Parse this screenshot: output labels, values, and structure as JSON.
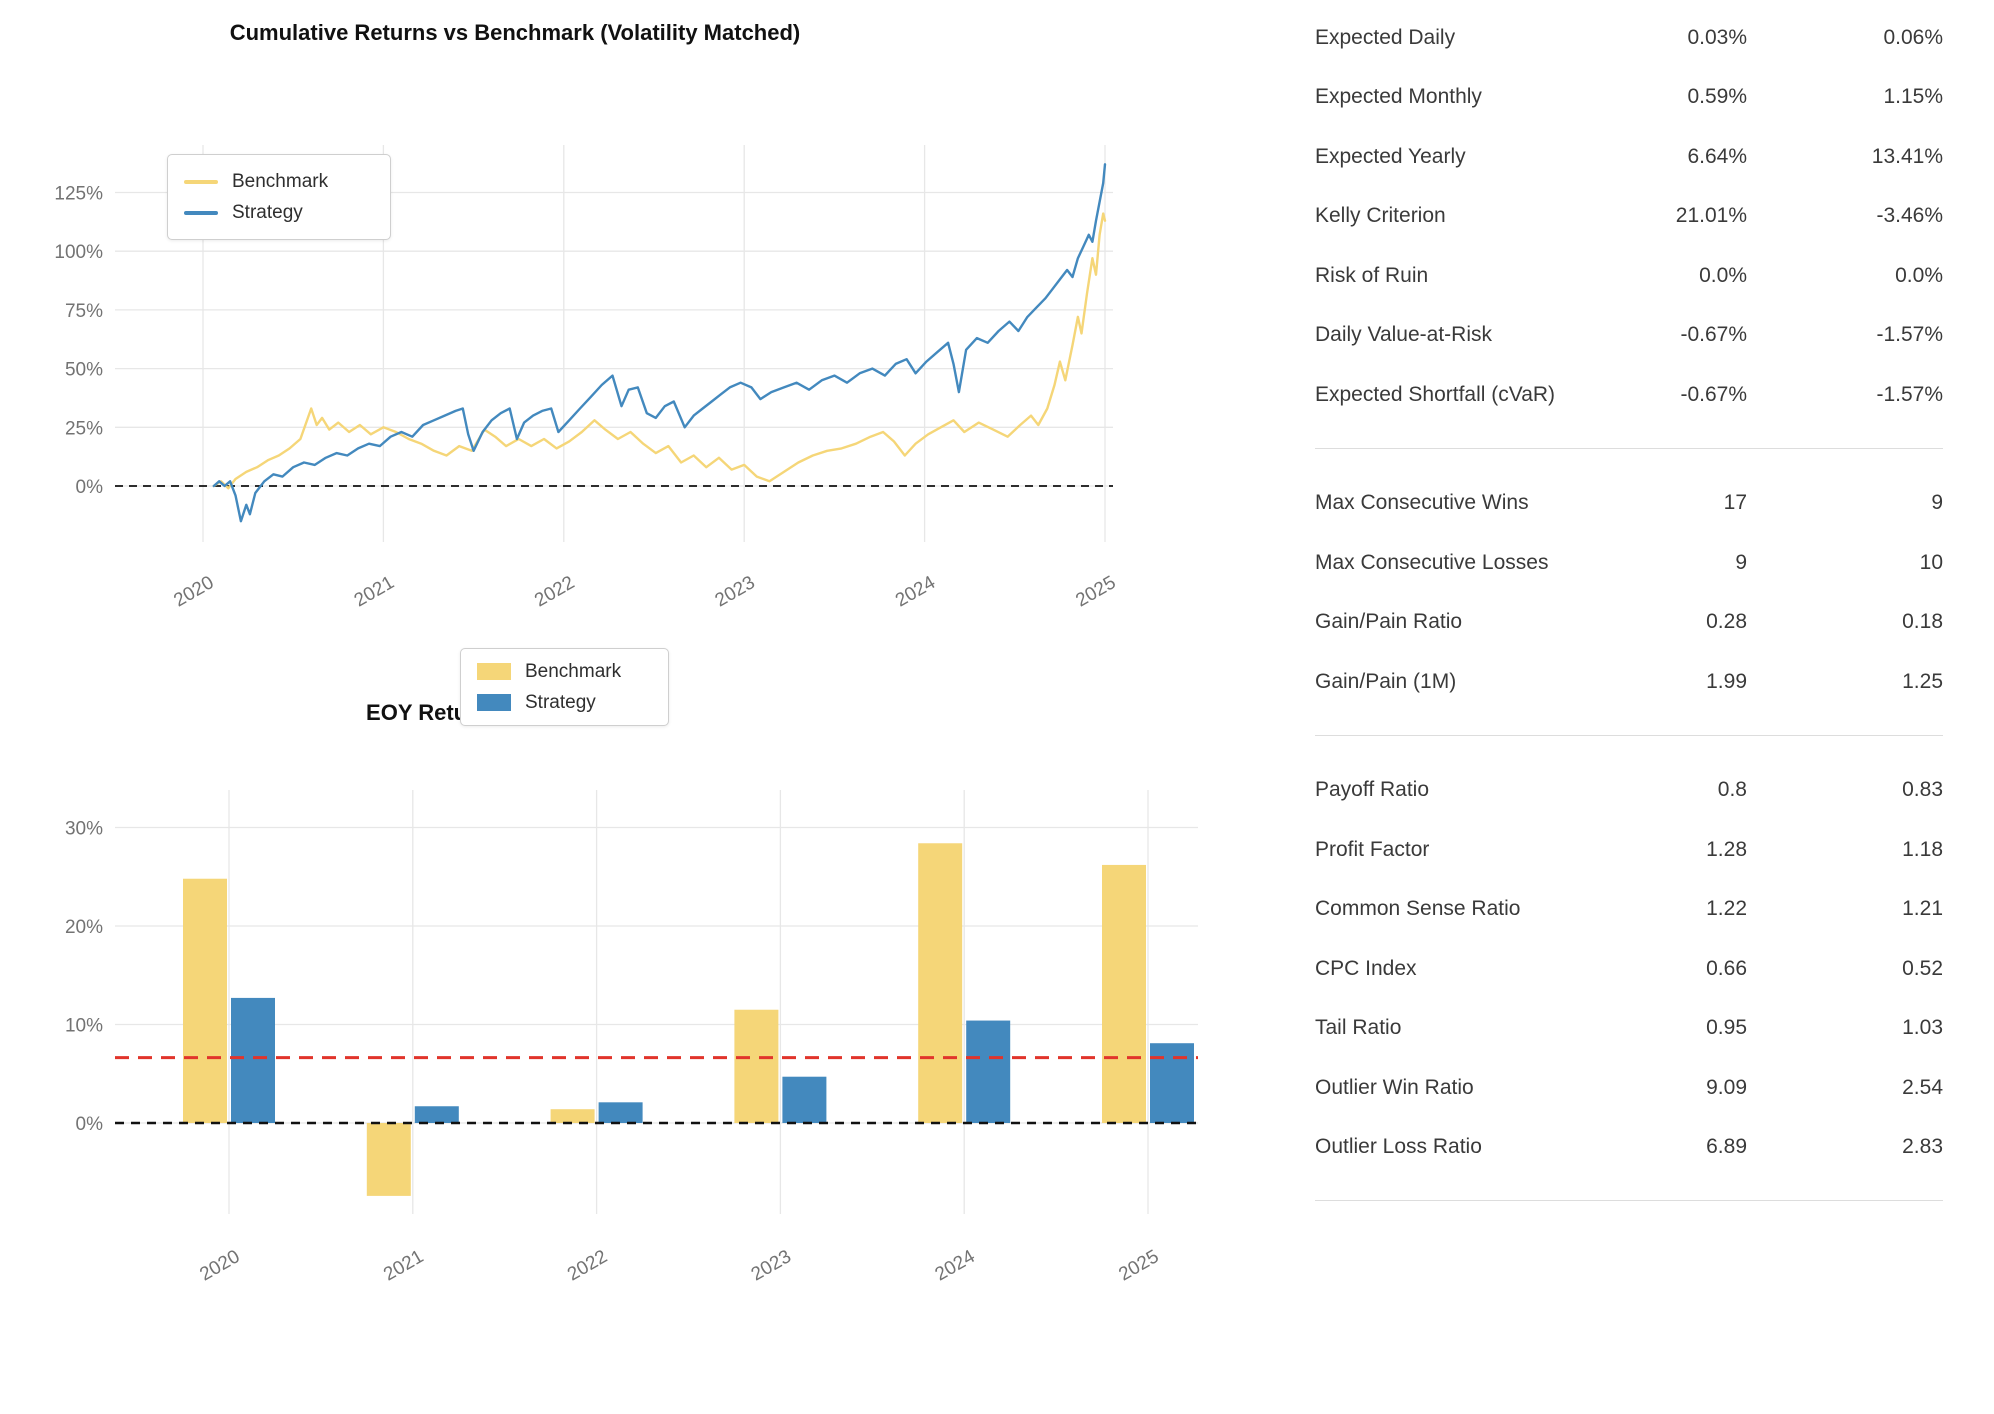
{
  "charts": {
    "cumulative": {
      "type": "line",
      "title": "Cumulative Returns vs Benchmark (Volatility Matched)",
      "legend": [
        {
          "name": "Benchmark",
          "color": "#F5D678"
        },
        {
          "name": "Strategy",
          "color": "#4389BE"
        }
      ],
      "ytick_labels": [
        "0%",
        "25%",
        "50%",
        "75%",
        "100%",
        "125%"
      ],
      "ytick_values": [
        0,
        25,
        50,
        75,
        100,
        125
      ],
      "xtick_labels": [
        "2020",
        "2021",
        "2022",
        "2023",
        "2024",
        "2025"
      ],
      "ylim": [
        -25,
        147
      ],
      "grid": true,
      "zero_line": {
        "color": "#111111",
        "style": "dashed",
        "value": 0
      },
      "series": [
        {
          "name": "Benchmark",
          "color": "#F5D678",
          "points": [
            [
              2020.06,
              0
            ],
            [
              2020.1,
              2
            ],
            [
              2020.14,
              -1
            ],
            [
              2020.18,
              3
            ],
            [
              2020.24,
              6
            ],
            [
              2020.3,
              8
            ],
            [
              2020.36,
              11
            ],
            [
              2020.42,
              13
            ],
            [
              2020.48,
              16
            ],
            [
              2020.54,
              20
            ],
            [
              2020.6,
              33
            ],
            [
              2020.63,
              26
            ],
            [
              2020.66,
              29
            ],
            [
              2020.7,
              24
            ],
            [
              2020.75,
              27
            ],
            [
              2020.81,
              23
            ],
            [
              2020.87,
              26
            ],
            [
              2020.93,
              22
            ],
            [
              2021.0,
              25
            ],
            [
              2021.07,
              23
            ],
            [
              2021.14,
              20
            ],
            [
              2021.21,
              18
            ],
            [
              2021.28,
              15
            ],
            [
              2021.35,
              13
            ],
            [
              2021.42,
              17
            ],
            [
              2021.49,
              15
            ],
            [
              2021.56,
              24
            ],
            [
              2021.62,
              21
            ],
            [
              2021.68,
              17
            ],
            [
              2021.75,
              20
            ],
            [
              2021.82,
              17
            ],
            [
              2021.89,
              20
            ],
            [
              2021.96,
              16
            ],
            [
              2022.03,
              19
            ],
            [
              2022.1,
              23
            ],
            [
              2022.17,
              28
            ],
            [
              2022.23,
              24
            ],
            [
              2022.3,
              20
            ],
            [
              2022.37,
              23
            ],
            [
              2022.44,
              18
            ],
            [
              2022.51,
              14
            ],
            [
              2022.58,
              17
            ],
            [
              2022.65,
              10
            ],
            [
              2022.72,
              13
            ],
            [
              2022.79,
              8
            ],
            [
              2022.86,
              12
            ],
            [
              2022.93,
              7
            ],
            [
              2023.0,
              9
            ],
            [
              2023.07,
              4
            ],
            [
              2023.14,
              2
            ],
            [
              2023.22,
              6
            ],
            [
              2023.3,
              10
            ],
            [
              2023.38,
              13
            ],
            [
              2023.46,
              15
            ],
            [
              2023.54,
              16
            ],
            [
              2023.62,
              18
            ],
            [
              2023.7,
              21
            ],
            [
              2023.77,
              23
            ],
            [
              2023.83,
              19
            ],
            [
              2023.89,
              13
            ],
            [
              2023.95,
              18
            ],
            [
              2024.02,
              22
            ],
            [
              2024.09,
              25
            ],
            [
              2024.16,
              28
            ],
            [
              2024.22,
              23
            ],
            [
              2024.3,
              27
            ],
            [
              2024.38,
              24
            ],
            [
              2024.46,
              21
            ],
            [
              2024.53,
              26
            ],
            [
              2024.59,
              30
            ],
            [
              2024.63,
              26
            ],
            [
              2024.68,
              33
            ],
            [
              2024.72,
              43
            ],
            [
              2024.75,
              53
            ],
            [
              2024.78,
              45
            ],
            [
              2024.82,
              60
            ],
            [
              2024.85,
              72
            ],
            [
              2024.87,
              65
            ],
            [
              2024.9,
              82
            ],
            [
              2024.93,
              97
            ],
            [
              2024.95,
              90
            ],
            [
              2024.97,
              107
            ],
            [
              2024.99,
              116
            ],
            [
              2025.0,
              113
            ]
          ]
        },
        {
          "name": "Strategy",
          "color": "#4389BE",
          "points": [
            [
              2020.06,
              0
            ],
            [
              2020.09,
              2
            ],
            [
              2020.12,
              0
            ],
            [
              2020.15,
              2
            ],
            [
              2020.18,
              -4
            ],
            [
              2020.21,
              -15
            ],
            [
              2020.24,
              -8
            ],
            [
              2020.26,
              -12
            ],
            [
              2020.29,
              -3
            ],
            [
              2020.34,
              2
            ],
            [
              2020.39,
              5
            ],
            [
              2020.44,
              4
            ],
            [
              2020.5,
              8
            ],
            [
              2020.56,
              10
            ],
            [
              2020.62,
              9
            ],
            [
              2020.68,
              12
            ],
            [
              2020.74,
              14
            ],
            [
              2020.8,
              13
            ],
            [
              2020.86,
              16
            ],
            [
              2020.92,
              18
            ],
            [
              2020.98,
              17
            ],
            [
              2021.04,
              21
            ],
            [
              2021.1,
              23
            ],
            [
              2021.16,
              21
            ],
            [
              2021.22,
              26
            ],
            [
              2021.28,
              28
            ],
            [
              2021.34,
              30
            ],
            [
              2021.4,
              32
            ],
            [
              2021.44,
              33
            ],
            [
              2021.47,
              22
            ],
            [
              2021.5,
              15
            ],
            [
              2021.55,
              23
            ],
            [
              2021.6,
              28
            ],
            [
              2021.65,
              31
            ],
            [
              2021.7,
              33
            ],
            [
              2021.74,
              20
            ],
            [
              2021.78,
              27
            ],
            [
              2021.83,
              30
            ],
            [
              2021.88,
              32
            ],
            [
              2021.93,
              33
            ],
            [
              2021.97,
              23
            ],
            [
              2022.03,
              28
            ],
            [
              2022.09,
              33
            ],
            [
              2022.15,
              38
            ],
            [
              2022.21,
              43
            ],
            [
              2022.27,
              47
            ],
            [
              2022.32,
              34
            ],
            [
              2022.36,
              41
            ],
            [
              2022.41,
              42
            ],
            [
              2022.46,
              31
            ],
            [
              2022.51,
              29
            ],
            [
              2022.56,
              34
            ],
            [
              2022.61,
              36
            ],
            [
              2022.67,
              25
            ],
            [
              2022.72,
              30
            ],
            [
              2022.77,
              33
            ],
            [
              2022.82,
              36
            ],
            [
              2022.87,
              39
            ],
            [
              2022.92,
              42
            ],
            [
              2022.98,
              44
            ],
            [
              2023.04,
              42
            ],
            [
              2023.09,
              37
            ],
            [
              2023.15,
              40
            ],
            [
              2023.22,
              42
            ],
            [
              2023.29,
              44
            ],
            [
              2023.36,
              41
            ],
            [
              2023.43,
              45
            ],
            [
              2023.5,
              47
            ],
            [
              2023.57,
              44
            ],
            [
              2023.64,
              48
            ],
            [
              2023.71,
              50
            ],
            [
              2023.78,
              47
            ],
            [
              2023.84,
              52
            ],
            [
              2023.9,
              54
            ],
            [
              2023.95,
              48
            ],
            [
              2024.01,
              53
            ],
            [
              2024.07,
              57
            ],
            [
              2024.13,
              61
            ],
            [
              2024.16,
              52
            ],
            [
              2024.19,
              40
            ],
            [
              2024.23,
              58
            ],
            [
              2024.29,
              63
            ],
            [
              2024.35,
              61
            ],
            [
              2024.41,
              66
            ],
            [
              2024.47,
              70
            ],
            [
              2024.52,
              66
            ],
            [
              2024.57,
              72
            ],
            [
              2024.62,
              76
            ],
            [
              2024.67,
              80
            ],
            [
              2024.71,
              84
            ],
            [
              2024.75,
              88
            ],
            [
              2024.79,
              92
            ],
            [
              2024.82,
              89
            ],
            [
              2024.85,
              97
            ],
            [
              2024.88,
              102
            ],
            [
              2024.91,
              107
            ],
            [
              2024.93,
              104
            ],
            [
              2024.95,
              113
            ],
            [
              2024.97,
              121
            ],
            [
              2024.99,
              129
            ],
            [
              2025.0,
              137
            ]
          ]
        }
      ]
    },
    "eoy": {
      "type": "bar",
      "title": "EOY Returns  vs Benchmark",
      "legend": [
        {
          "name": "Benchmark",
          "color": "#F5D678"
        },
        {
          "name": "Strategy",
          "color": "#4389BE"
        }
      ],
      "categories": [
        "2020",
        "2021",
        "2022",
        "2023",
        "2024",
        "2025"
      ],
      "series": [
        {
          "name": "Benchmark",
          "color": "#F5D678",
          "values": [
            24.8,
            -7.4,
            1.4,
            11.5,
            28.4,
            26.2
          ]
        },
        {
          "name": "Strategy",
          "color": "#4389BE",
          "values": [
            12.7,
            1.7,
            2.1,
            4.7,
            10.4,
            8.1
          ]
        }
      ],
      "ytick_labels": [
        "0%",
        "10%",
        "20%",
        "30%"
      ],
      "ytick_values": [
        0,
        10,
        20,
        30
      ],
      "ylim": [
        -8.7,
        34
      ],
      "grid": true,
      "zero_line": {
        "color": "#111111",
        "style": "dashed",
        "value": 0
      },
      "reference_line": {
        "value": 6.64,
        "color": "#E1342B",
        "style": "dashed"
      }
    }
  },
  "metrics_table": {
    "groups": [
      {
        "rows": [
          {
            "label": "Expected Daily",
            "col1": "0.03%",
            "col2": "0.06%"
          },
          {
            "label": "Expected Monthly",
            "col1": "0.59%",
            "col2": "1.15%"
          },
          {
            "label": "Expected Yearly",
            "col1": "6.64%",
            "col2": "13.41%"
          },
          {
            "label": "Kelly Criterion",
            "col1": "21.01%",
            "col2": "-3.46%"
          },
          {
            "label": "Risk of Ruin",
            "col1": "0.0%",
            "col2": "0.0%"
          },
          {
            "label": "Daily Value-at-Risk",
            "col1": "-0.67%",
            "col2": "-1.57%"
          },
          {
            "label": "Expected Shortfall (cVaR)",
            "col1": "-0.67%",
            "col2": "-1.57%"
          }
        ]
      },
      {
        "rows": [
          {
            "label": "Max Consecutive Wins",
            "col1": "17",
            "col2": "9"
          },
          {
            "label": "Max Consecutive Losses",
            "col1": "9",
            "col2": "10"
          },
          {
            "label": "Gain/Pain Ratio",
            "col1": "0.28",
            "col2": "0.18"
          },
          {
            "label": "Gain/Pain (1M)",
            "col1": "1.99",
            "col2": "1.25"
          }
        ]
      },
      {
        "rows": [
          {
            "label": "Payoff Ratio",
            "col1": "0.8",
            "col2": "0.83"
          },
          {
            "label": "Profit Factor",
            "col1": "1.28",
            "col2": "1.18"
          },
          {
            "label": "Common Sense Ratio",
            "col1": "1.22",
            "col2": "1.21"
          },
          {
            "label": "CPC Index",
            "col1": "0.66",
            "col2": "0.52"
          },
          {
            "label": "Tail Ratio",
            "col1": "0.95",
            "col2": "1.03"
          },
          {
            "label": "Outlier Win Ratio",
            "col1": "9.09",
            "col2": "2.54"
          },
          {
            "label": "Outlier Loss Ratio",
            "col1": "6.89",
            "col2": "2.83"
          }
        ]
      }
    ]
  },
  "colors": {
    "benchmark": "#F5D678",
    "strategy": "#4389BE",
    "reference_red": "#E1342B",
    "grid": "#E7E7E7",
    "tick_text": "#737373",
    "table_text": "#3A3A3A",
    "divider": "#DDDDDD"
  }
}
